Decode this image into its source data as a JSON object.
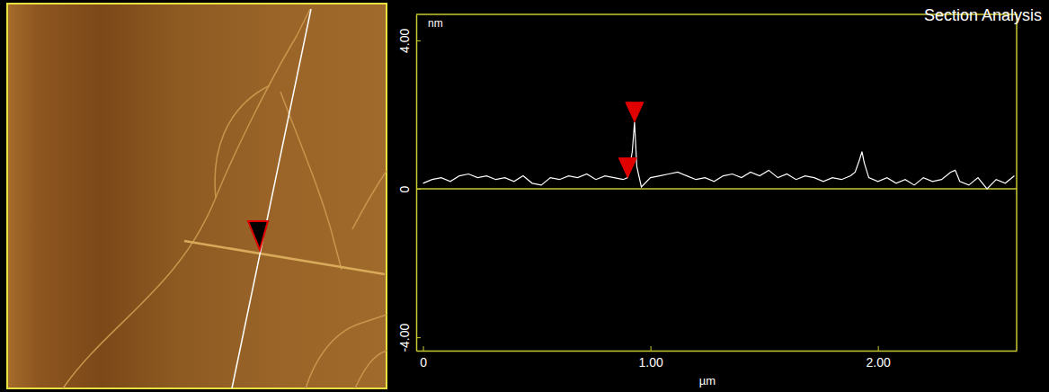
{
  "chart_data": {
    "type": "line",
    "title": "Section Analysis",
    "ylabel": "nm",
    "xlabel": "µm",
    "color": "#ffffff",
    "x": [
      0,
      0.04,
      0.08,
      0.12,
      0.16,
      0.2,
      0.24,
      0.28,
      0.32,
      0.36,
      0.4,
      0.44,
      0.48,
      0.52,
      0.56,
      0.6,
      0.64,
      0.68,
      0.72,
      0.76,
      0.8,
      0.84,
      0.88,
      0.9,
      0.92,
      0.93,
      0.94,
      0.96,
      1.0,
      1.04,
      1.08,
      1.12,
      1.16,
      1.2,
      1.24,
      1.28,
      1.32,
      1.36,
      1.4,
      1.44,
      1.48,
      1.52,
      1.56,
      1.6,
      1.64,
      1.68,
      1.72,
      1.76,
      1.8,
      1.84,
      1.88,
      1.9,
      1.92,
      1.93,
      1.94,
      1.96,
      2.0,
      2.04,
      2.08,
      2.12,
      2.16,
      2.2,
      2.24,
      2.28,
      2.32,
      2.34,
      2.36,
      2.4,
      2.44,
      2.48,
      2.52,
      2.56,
      2.6
    ],
    "values": [
      0.15,
      0.25,
      0.3,
      0.2,
      0.35,
      0.4,
      0.3,
      0.35,
      0.25,
      0.3,
      0.2,
      0.35,
      0.15,
      0.1,
      0.3,
      0.25,
      0.35,
      0.3,
      0.4,
      0.25,
      0.35,
      0.3,
      0.25,
      0.3,
      1.0,
      1.8,
      0.6,
      0.05,
      0.3,
      0.35,
      0.4,
      0.45,
      0.35,
      0.25,
      0.3,
      0.2,
      0.35,
      0.4,
      0.3,
      0.45,
      0.35,
      0.5,
      0.3,
      0.4,
      0.25,
      0.35,
      0.3,
      0.2,
      0.3,
      0.25,
      0.35,
      0.45,
      0.8,
      1.0,
      0.7,
      0.3,
      0.2,
      0.3,
      0.15,
      0.25,
      0.1,
      0.3,
      0.2,
      0.25,
      0.45,
      0.5,
      0.2,
      0.1,
      0.3,
      0.0,
      0.25,
      0.15,
      0.35
    ],
    "markers": [
      {
        "x": 0.93,
        "y": 1.8,
        "color": "#e00000"
      },
      {
        "x": 0.9,
        "y": 0.3,
        "color": "#e00000"
      }
    ],
    "xlim": [
      -0.03,
      2.61
    ],
    "ylim": [
      -4.36,
      4.7
    ],
    "xticks": [
      0,
      {
        "value": 1,
        "label": "1.00"
      },
      {
        "value": 2,
        "label": "2.00"
      }
    ],
    "yticks": [
      {
        "value": -4,
        "label": "-4.00"
      },
      0,
      {
        "value": 4,
        "label": "4.00"
      }
    ],
    "grid": false
  }
}
